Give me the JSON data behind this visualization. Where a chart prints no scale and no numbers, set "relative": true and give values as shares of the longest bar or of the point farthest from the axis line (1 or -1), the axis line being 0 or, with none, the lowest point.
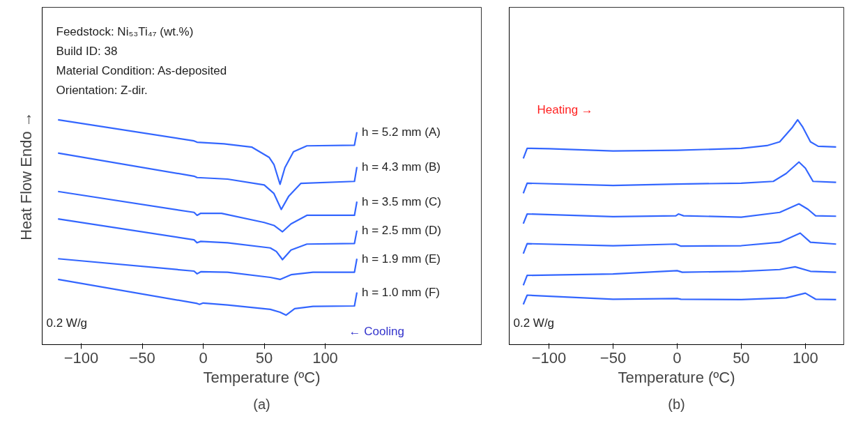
{
  "chart_data": [
    {
      "type": "line",
      "title": "(a)",
      "xlabel": "Temperature (ºC)",
      "ylabel": "Heat Flow Endo →",
      "relative": true,
      "tick_labels": "x",
      "xlim": [
        -132,
        228
      ],
      "xticks": [
        -100,
        -50,
        0,
        50,
        100
      ],
      "annotations": [
        "Feedstock:  Ni₅₃Ti₄₇ (wt.%)",
        "Build ID:  38",
        "Material Condition:  As-deposited",
        "Orientation:  Z-dir.",
        "0.2 W/g",
        "← Cooling"
      ],
      "series": [
        {
          "name": "h = 5.2 mm  (A)",
          "color": "#3366ff",
          "x": [
            -119,
            -7.5,
            -5,
            17,
            40,
            54,
            58,
            63,
            67,
            74,
            85,
            124,
            126
          ],
          "values": [
            1.0,
            0.906,
            0.9,
            0.893,
            0.878,
            0.833,
            0.801,
            0.713,
            0.787,
            0.858,
            0.884,
            0.887,
            0.945
          ]
        },
        {
          "name": "h = 4.3 mm  (B)",
          "color": "#3366ff",
          "x": [
            -119,
            -7.5,
            -5,
            20,
            50,
            58,
            64,
            70,
            80,
            124,
            126
          ],
          "values": [
            0.852,
            0.749,
            0.743,
            0.736,
            0.71,
            0.672,
            0.601,
            0.659,
            0.717,
            0.726,
            0.79
          ]
        },
        {
          "name": "h = 3.5 mm  (C)",
          "color": "#3366ff",
          "x": [
            -119,
            -7.5,
            -5,
            -2,
            15,
            50,
            58,
            65,
            72,
            85,
            124,
            126
          ],
          "values": [
            0.681,
            0.588,
            0.575,
            0.584,
            0.584,
            0.543,
            0.53,
            0.502,
            0.537,
            0.575,
            0.575,
            0.636
          ]
        },
        {
          "name": "h = 2.5 mm  (D)",
          "color": "#3366ff",
          "x": [
            -119,
            -7.5,
            -5,
            -2,
            20,
            55,
            60,
            65,
            72,
            85,
            124,
            126
          ],
          "values": [
            0.559,
            0.466,
            0.453,
            0.459,
            0.453,
            0.43,
            0.414,
            0.378,
            0.421,
            0.447,
            0.45,
            0.507
          ]
        },
        {
          "name": "h = 1.9 mm  (E)",
          "color": "#3366ff",
          "x": [
            -119,
            -7.5,
            -5,
            -2,
            20,
            55,
            63,
            72,
            90,
            124,
            126
          ],
          "values": [
            0.382,
            0.327,
            0.315,
            0.324,
            0.322,
            0.299,
            0.29,
            0.311,
            0.322,
            0.322,
            0.382
          ]
        },
        {
          "name": "h = 1.0 mm  (F)",
          "color": "#3366ff",
          "x": [
            -119,
            -5,
            -3,
            0,
            20,
            55,
            63,
            68,
            75,
            90,
            124,
            126
          ],
          "values": [
            0.29,
            0.183,
            0.179,
            0.185,
            0.176,
            0.157,
            0.144,
            0.131,
            0.16,
            0.17,
            0.172,
            0.232
          ]
        }
      ]
    },
    {
      "type": "line",
      "title": "(b)",
      "xlabel": "Temperature (ºC)",
      "relative": true,
      "tick_labels": "x",
      "xlim": [
        -131,
        130
      ],
      "xticks": [
        -100,
        -50,
        0,
        50,
        100
      ],
      "annotations": [
        "Heating →",
        "0.2 W/g"
      ],
      "series": [
        {
          "color": "#3366ff",
          "x": [
            -120,
            -117,
            -100,
            -50,
            0,
            50,
            70,
            80,
            90,
            94,
            98,
            104,
            110,
            124
          ],
          "values": [
            0.828,
            0.873,
            0.871,
            0.861,
            0.864,
            0.873,
            0.885,
            0.902,
            0.967,
            1.0,
            0.967,
            0.902,
            0.882,
            0.879
          ]
        },
        {
          "color": "#3366ff",
          "x": [
            -120,
            -117,
            -50,
            0,
            50,
            75,
            85,
            95,
            100,
            106,
            124
          ],
          "values": [
            0.673,
            0.718,
            0.708,
            0.714,
            0.718,
            0.726,
            0.761,
            0.812,
            0.785,
            0.726,
            0.722
          ]
        },
        {
          "color": "#3366ff",
          "x": [
            -120,
            -117,
            -50,
            -1,
            1,
            5,
            50,
            80,
            95,
            102,
            108,
            124
          ],
          "values": [
            0.538,
            0.581,
            0.569,
            0.573,
            0.581,
            0.573,
            0.567,
            0.588,
            0.626,
            0.602,
            0.573,
            0.571
          ]
        },
        {
          "color": "#3366ff",
          "x": [
            -120,
            -117,
            -50,
            -1,
            3,
            50,
            80,
            96,
            104,
            124
          ],
          "values": [
            0.405,
            0.449,
            0.44,
            0.447,
            0.438,
            0.44,
            0.455,
            0.496,
            0.455,
            0.447
          ]
        },
        {
          "color": "#3366ff",
          "x": [
            -120,
            -117,
            -50,
            0,
            4,
            50,
            80,
            92,
            104,
            124
          ],
          "values": [
            0.264,
            0.308,
            0.314,
            0.329,
            0.322,
            0.326,
            0.334,
            0.346,
            0.326,
            0.322
          ]
        },
        {
          "color": "#3366ff",
          "x": [
            -120,
            -117,
            -50,
            0,
            3,
            50,
            85,
            100,
            108,
            124
          ],
          "values": [
            0.179,
            0.22,
            0.202,
            0.205,
            0.202,
            0.2,
            0.208,
            0.229,
            0.202,
            0.2
          ]
        }
      ]
    }
  ]
}
